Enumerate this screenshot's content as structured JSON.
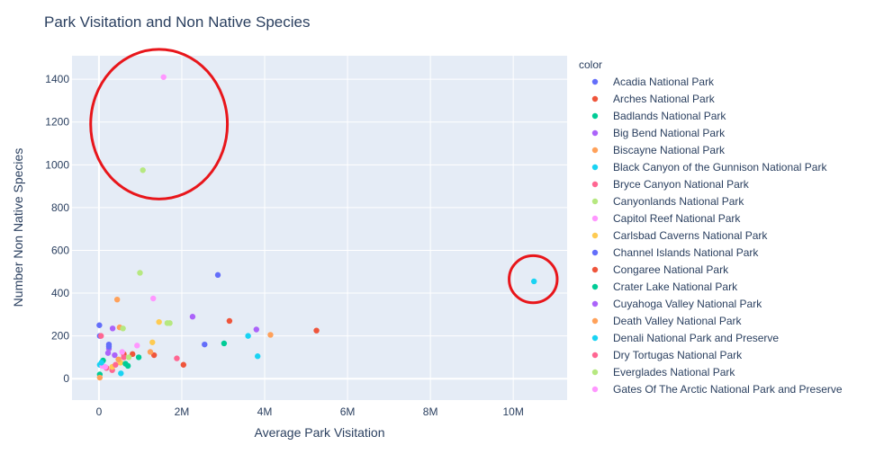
{
  "chart_data": {
    "type": "scatter",
    "title": "Park Visitation and Non Native Species",
    "xlabel": "Average Park Visitation",
    "ylabel": "Number Non Native Species",
    "xlim": [
      -650000,
      11300000
    ],
    "ylim": [
      -100,
      1510
    ],
    "xticks": [
      {
        "value": 0,
        "label": "0"
      },
      {
        "value": 2000000,
        "label": "2M"
      },
      {
        "value": 4000000,
        "label": "4M"
      },
      {
        "value": 6000000,
        "label": "6M"
      },
      {
        "value": 8000000,
        "label": "8M"
      },
      {
        "value": 10000000,
        "label": "10M"
      }
    ],
    "yticks": [
      {
        "value": 0,
        "label": "0"
      },
      {
        "value": 200,
        "label": "200"
      },
      {
        "value": 400,
        "label": "400"
      },
      {
        "value": 600,
        "label": "600"
      },
      {
        "value": 800,
        "label": "800"
      },
      {
        "value": 1000,
        "label": "1000"
      },
      {
        "value": 1200,
        "label": "1200"
      },
      {
        "value": 1400,
        "label": "1400"
      }
    ],
    "grid": true,
    "legend_title": "color",
    "legend_position": "right",
    "background": "#e5ecf6",
    "series": [
      {
        "name": "Acadia National Park",
        "color": "#636efa",
        "points": [
          [
            10000,
            250
          ],
          [
            240000,
            160
          ],
          [
            2550000,
            160
          ],
          [
            2870000,
            485
          ],
          [
            20000,
            200
          ]
        ]
      },
      {
        "name": "Arches National Park",
        "color": "#ef553b",
        "points": [
          [
            1330000,
            110
          ],
          [
            2040000,
            65
          ],
          [
            3150000,
            270
          ],
          [
            5250000,
            225
          ],
          [
            600000,
            115
          ]
        ]
      },
      {
        "name": "Badlands National Park",
        "color": "#00cc96",
        "points": [
          [
            100000,
            85
          ],
          [
            20000,
            20
          ],
          [
            960000,
            100
          ],
          [
            3020000,
            165
          ],
          [
            700000,
            60
          ]
        ]
      },
      {
        "name": "Big Bend National Park",
        "color": "#ab63fa",
        "points": [
          [
            330000,
            235
          ],
          [
            380000,
            110
          ],
          [
            2260000,
            290
          ],
          [
            3800000,
            230
          ],
          [
            240000,
            140
          ]
        ]
      },
      {
        "name": "Biscayne National Park",
        "color": "#ffa15a",
        "points": [
          [
            20000,
            5
          ],
          [
            440000,
            370
          ],
          [
            500000,
            240
          ],
          [
            1240000,
            125
          ],
          [
            4140000,
            205
          ]
        ]
      },
      {
        "name": "Black Canyon of the Gunnison National Park",
        "color": "#19d3f3",
        "points": [
          [
            10500000,
            455
          ],
          [
            3600000,
            200
          ],
          [
            3830000,
            105
          ],
          [
            530000,
            25
          ],
          [
            20000,
            65
          ]
        ]
      },
      {
        "name": "Bryce Canyon National Park",
        "color": "#ff6692",
        "points": [
          [
            50000,
            200
          ],
          [
            180000,
            50
          ],
          [
            600000,
            100
          ],
          [
            1880000,
            95
          ],
          [
            320000,
            40
          ]
        ]
      },
      {
        "name": "Canyonlands National Park",
        "color": "#b6e880",
        "points": [
          [
            1060000,
            975
          ],
          [
            990000,
            495
          ],
          [
            1710000,
            260
          ],
          [
            580000,
            235
          ],
          [
            1650000,
            260
          ]
        ]
      },
      {
        "name": "Capitol Reef National Park",
        "color": "#ff97ff",
        "points": [
          [
            1560000,
            1410
          ],
          [
            1310000,
            375
          ],
          [
            920000,
            155
          ],
          [
            560000,
            125
          ],
          [
            80000,
            60
          ]
        ]
      },
      {
        "name": "Carlsbad Caverns National Park",
        "color": "#fecb52",
        "points": [
          [
            1450000,
            265
          ],
          [
            1290000,
            170
          ],
          [
            520000,
            75
          ],
          [
            320000,
            55
          ]
        ]
      },
      {
        "name": "Channel Islands National Park",
        "color": "#636efa",
        "points": [
          [
            240000,
            150
          ]
        ]
      },
      {
        "name": "Congaree National Park",
        "color": "#ef553b",
        "points": [
          [
            810000,
            115
          ]
        ]
      },
      {
        "name": "Crater Lake National Park",
        "color": "#00cc96",
        "points": [
          [
            640000,
            70
          ]
        ]
      },
      {
        "name": "Cuyahoga Valley National Park",
        "color": "#ab63fa",
        "points": [
          [
            220000,
            120
          ]
        ]
      },
      {
        "name": "Death Valley National Park",
        "color": "#ffa15a",
        "points": [
          [
            470000,
            90
          ]
        ]
      },
      {
        "name": "Denali National Park and Preserve",
        "color": "#19d3f3",
        "points": [
          [
            60000,
            75
          ]
        ]
      },
      {
        "name": "Dry Tortugas National Park",
        "color": "#ff6692",
        "points": [
          [
            400000,
            65
          ]
        ]
      },
      {
        "name": "Everglades National Park",
        "color": "#b6e880",
        "points": [
          [
            720000,
            100
          ]
        ]
      },
      {
        "name": "Gates Of The Arctic National Park and Preserve",
        "color": "#ff97ff",
        "points": [
          [
            150000,
            55
          ]
        ]
      }
    ],
    "annotations": [
      {
        "shape": "ellipse",
        "center": [
          1450000,
          1190
        ],
        "radius_x": 1650000,
        "radius_y": 350,
        "color": "#e8161b"
      },
      {
        "shape": "ellipse",
        "center": [
          10480000,
          465
        ],
        "radius_x": 580000,
        "radius_y": 110,
        "color": "#e8161b"
      }
    ]
  }
}
